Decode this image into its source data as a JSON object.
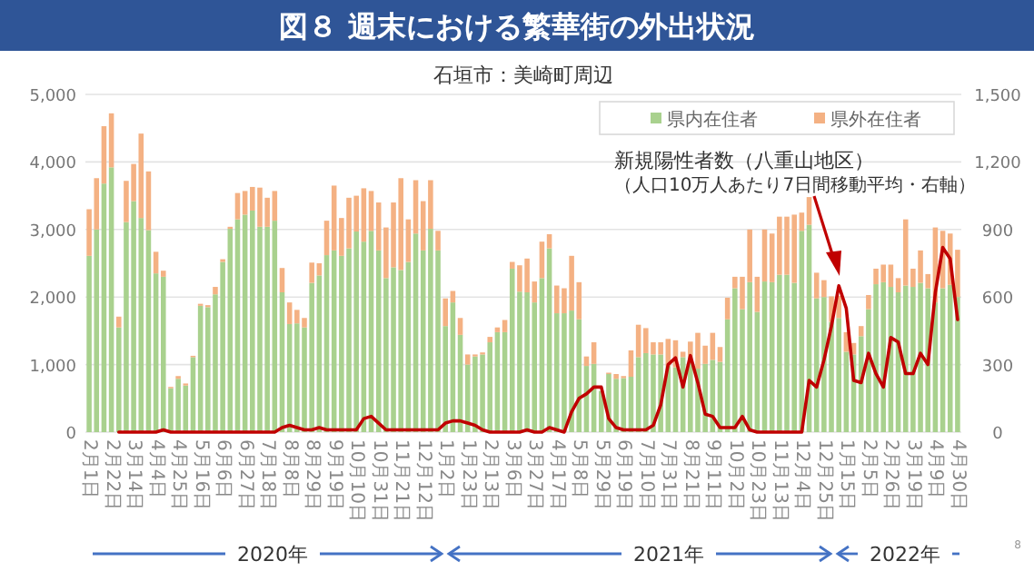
{
  "chart_data": {
    "type": "bar",
    "stacked": true,
    "title": "図８ 週末における繁華街の外出状況",
    "subtitle": "石垣市：美崎町周辺",
    "annotations": [
      "（人口10万人あたり7日間移動平均・右軸）",
      "2020年",
      "2021年",
      "2022年",
      "8"
    ],
    "categories": [
      "2月1日",
      null,
      null,
      "2月22日",
      null,
      null,
      "3月14日",
      null,
      null,
      "4月4日",
      null,
      null,
      "4月25日",
      null,
      null,
      "5月16日",
      null,
      null,
      "6月6日",
      null,
      null,
      "6月27日",
      null,
      null,
      "7月18日",
      null,
      null,
      "8月8日",
      null,
      null,
      "8月29日",
      null,
      null,
      "9月19日",
      null,
      null,
      "10月10日",
      null,
      null,
      "10月31日",
      null,
      null,
      "11月21日",
      null,
      null,
      "12月12日",
      null,
      null,
      "1月2日",
      null,
      null,
      "1月23日",
      null,
      null,
      "2月13日",
      null,
      null,
      "3月6日",
      null,
      null,
      "3月27日",
      null,
      null,
      "4月17日",
      null,
      null,
      "5月8日",
      null,
      null,
      "5月29日",
      null,
      null,
      "6月19日",
      null,
      null,
      "7月10日",
      null,
      null,
      "7月31日",
      null,
      null,
      "8月21日",
      null,
      null,
      "9月11日",
      null,
      null,
      "10月2日",
      null,
      null,
      "10月23日",
      null,
      null,
      "11月13日",
      null,
      null,
      "12月4日",
      null,
      null,
      "12月25日",
      null,
      null,
      "1月15日",
      null,
      null,
      "2月5日",
      null,
      null,
      "2月26日",
      null,
      null,
      "3月19日",
      null,
      null,
      "4月9日",
      null,
      null,
      "4月30日"
    ],
    "series": [
      {
        "name": "県内在住者",
        "color": "#a9d18e",
        "values": [
          2610,
          3000,
          3680,
          3920,
          1550,
          3110,
          3420,
          3170,
          2990,
          2350,
          2300,
          650,
          790,
          690,
          1110,
          1870,
          1850,
          2040,
          2520,
          3010,
          3150,
          3220,
          3280,
          3040,
          3040,
          3130,
          2070,
          1600,
          1610,
          1550,
          2210,
          2320,
          2620,
          2690,
          2610,
          2720,
          2970,
          2820,
          2980,
          2690,
          2280,
          2440,
          2400,
          2520,
          2940,
          2690,
          3010,
          2690,
          1570,
          1920,
          1440,
          1000,
          1120,
          1150,
          1330,
          1480,
          1480,
          2420,
          2080,
          2070,
          1920,
          2280,
          2720,
          1760,
          1760,
          1800,
          1670,
          980,
          1010,
          610,
          860,
          790,
          800,
          820,
          1110,
          1170,
          1150,
          1150,
          980,
          960,
          1110,
          1050,
          940,
          1010,
          1070,
          1040,
          1670,
          2130,
          1820,
          2220,
          1780,
          2230,
          2220,
          2330,
          2330,
          2210,
          2980,
          3070,
          1980,
          2000,
          1630,
          1690,
          1190,
          1150,
          1420,
          1820,
          2190,
          2220,
          2150,
          2070,
          2170,
          2150,
          2210,
          2130,
          1920,
          2130,
          2180,
          2000
        ]
      },
      {
        "name": "県外在住者",
        "color": "#f4b183",
        "values": [
          690,
          760,
          850,
          800,
          160,
          610,
          550,
          1250,
          870,
          320,
          90,
          20,
          40,
          30,
          20,
          30,
          30,
          110,
          40,
          30,
          390,
          350,
          350,
          580,
          430,
          440,
          360,
          320,
          200,
          140,
          300,
          180,
          510,
          960,
          560,
          750,
          530,
          790,
          590,
          710,
          750,
          960,
          1360,
          630,
          790,
          730,
          720,
          290,
          410,
          170,
          250,
          150,
          30,
          30,
          80,
          70,
          180,
          100,
          390,
          500,
          310,
          540,
          210,
          410,
          370,
          810,
          550,
          140,
          320,
          null,
          20,
          70,
          30,
          390,
          480,
          370,
          180,
          180,
          400,
          400,
          80,
          290,
          530,
          270,
          400,
          220,
          320,
          170,
          480,
          780,
          520,
          770,
          720,
          860,
          860,
          1010,
          270,
          410,
          380,
          250,
          380,
          330,
          290,
          170,
          150,
          210,
          230,
          260,
          330,
          210,
          980,
          270,
          480,
          210,
          1110,
          850,
          760,
          700
        ]
      },
      {
        "name": "新規陽性者数（八重山地区）",
        "type": "line",
        "axis": "y2",
        "color": "#c00000",
        "values": [
          null,
          null,
          null,
          null,
          0,
          0,
          0,
          0,
          0,
          0,
          10,
          0,
          0,
          0,
          0,
          0,
          0,
          0,
          0,
          0,
          0,
          0,
          0,
          0,
          0,
          0,
          20,
          30,
          20,
          10,
          10,
          20,
          10,
          10,
          10,
          10,
          10,
          60,
          70,
          40,
          10,
          10,
          10,
          10,
          10,
          10,
          10,
          10,
          40,
          50,
          50,
          40,
          30,
          10,
          0,
          0,
          0,
          0,
          0,
          10,
          0,
          0,
          20,
          10,
          0,
          90,
          150,
          170,
          200,
          200,
          60,
          20,
          10,
          10,
          10,
          10,
          30,
          120,
          300,
          330,
          200,
          340,
          220,
          80,
          70,
          20,
          20,
          20,
          70,
          10,
          0,
          0,
          0,
          0,
          0,
          0,
          0,
          230,
          200,
          320,
          470,
          650,
          550,
          230,
          220,
          350,
          260,
          200,
          420,
          400,
          260,
          260,
          350,
          300,
          620,
          820,
          770,
          500
        ]
      }
    ],
    "ylim": [
      0,
      5000
    ],
    "yticks": [
      {
        "value": 0,
        "label": "0"
      },
      {
        "value": 1000,
        "label": "1,000"
      },
      {
        "value": 2000,
        "label": "2,000"
      },
      {
        "value": 3000,
        "label": "3,000"
      },
      {
        "value": 4000,
        "label": "4,000"
      },
      {
        "value": 5000,
        "label": "5,000"
      }
    ],
    "y2lim": [
      0,
      1500
    ],
    "y2ticks": [
      {
        "value": 0,
        "label": "0"
      },
      {
        "value": 300,
        "label": "300"
      },
      {
        "value": 600,
        "label": "600"
      },
      {
        "value": 900,
        "label": "900"
      },
      {
        "value": 1200,
        "label": "1,200"
      },
      {
        "value": 1500,
        "label": "1,500"
      }
    ],
    "grid": "y",
    "legend": "top right"
  }
}
